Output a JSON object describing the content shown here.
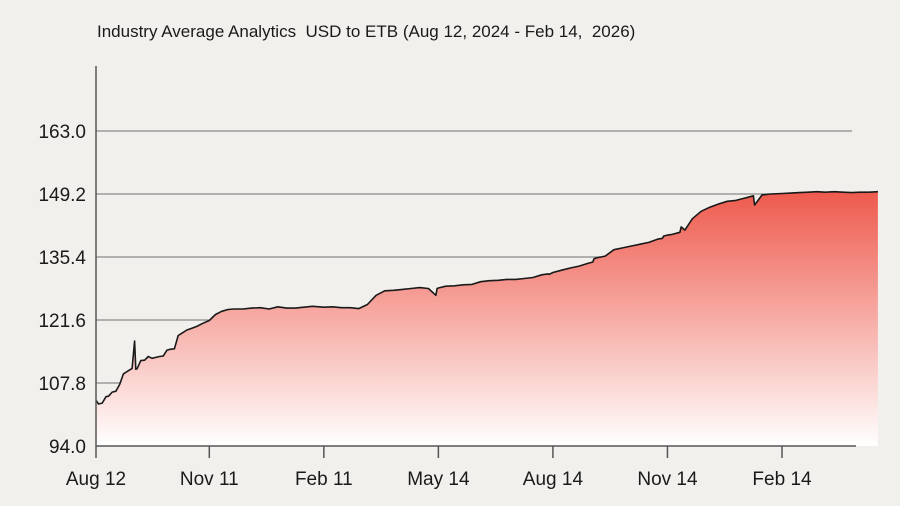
{
  "chart_data": {
    "type": "area",
    "title": "Industry Average Analytics  USD to ETB (Aug 12, 2024 - Feb 14,  2026)",
    "xlabel": "",
    "ylabel": "",
    "x_ticks": [
      "Aug 12",
      "Nov 11",
      "Feb 11",
      "May 14",
      "Aug 14",
      "Nov 14",
      "Feb 14"
    ],
    "y_ticks": [
      "94.0",
      "107.8",
      "121.6",
      "135.4",
      "149.2",
      "163.0"
    ],
    "ylim": [
      94.0,
      174.0
    ],
    "grid": "horizontal",
    "colors": {
      "fill_top": "#ee5a4d",
      "fill_bottom": "#ffffff",
      "line": "#1a1a1a",
      "grid": "#8a8a8a",
      "background": "#f1f0ec"
    },
    "series": [
      {
        "x": [
          "2024-08-12",
          "2024-08-14",
          "2024-08-17",
          "2024-08-20",
          "2024-08-22",
          "2024-08-25",
          "2024-08-28",
          "2024-08-31",
          "2024-09-03",
          "2024-09-07",
          "2024-09-10",
          "2024-09-12",
          "2024-09-13",
          "2024-09-14",
          "2024-09-17",
          "2024-09-20",
          "2024-09-23",
          "2024-09-26",
          "2024-09-29",
          "2024-10-02",
          "2024-10-05",
          "2024-10-08",
          "2024-10-11",
          "2024-10-14",
          "2024-10-17",
          "2024-10-20",
          "2024-10-24",
          "2024-10-28",
          "2024-11-01",
          "2024-11-06",
          "2024-11-11",
          "2024-11-16",
          "2024-11-21",
          "2024-11-26",
          "2024-12-01",
          "2024-12-08",
          "2024-12-15",
          "2024-12-22",
          "2024-12-29",
          "2025-01-05",
          "2025-01-12",
          "2025-01-19",
          "2025-01-26",
          "2025-02-02",
          "2025-02-11",
          "2025-02-18",
          "2025-02-25",
          "2025-03-04",
          "2025-03-11",
          "2025-03-18",
          "2025-03-25",
          "2025-04-01",
          "2025-04-08",
          "2025-04-15",
          "2025-04-22",
          "2025-04-29",
          "2025-05-06",
          "2025-05-12",
          "2025-05-13",
          "2025-05-14",
          "2025-05-20",
          "2025-05-27",
          "2025-06-03",
          "2025-06-10",
          "2025-06-17",
          "2025-06-24",
          "2025-07-01",
          "2025-07-08",
          "2025-07-15",
          "2025-07-22",
          "2025-07-29",
          "2025-08-05",
          "2025-08-10",
          "2025-08-11",
          "2025-08-14",
          "2025-08-21",
          "2025-08-28",
          "2025-09-04",
          "2025-09-11",
          "2025-09-15",
          "2025-09-16",
          "2025-09-18",
          "2025-09-25",
          "2025-10-02",
          "2025-10-09",
          "2025-10-16",
          "2025-10-23",
          "2025-10-30",
          "2025-11-06",
          "2025-11-10",
          "2025-11-11",
          "2025-11-14",
          "2025-11-17",
          "2025-11-24",
          "2025-11-25",
          "2025-11-28",
          "2025-12-04",
          "2025-12-11",
          "2025-12-18",
          "2025-12-25",
          "2026-01-01",
          "2026-01-08",
          "2026-01-15",
          "2026-01-22",
          "2026-01-23",
          "2026-01-29",
          "2026-02-05",
          "2026-02-14",
          "2026-02-21",
          "2026-02-28",
          "2026-03-07",
          "2026-03-14",
          "2026-03-21",
          "2026-03-28",
          "2026-04-04",
          "2026-04-11",
          "2026-04-18",
          "2026-04-25",
          "2026-05-02",
          "2026-05-09",
          "2026-05-13",
          "2026-05-15",
          "2026-05-18"
        ],
        "values": [
          104.0,
          103.2,
          103.4,
          104.8,
          104.9,
          105.8,
          106.0,
          107.5,
          109.8,
          110.5,
          111.0,
          117.0,
          110.8,
          110.9,
          112.7,
          112.8,
          113.6,
          113.2,
          113.4,
          113.6,
          113.7,
          115.0,
          115.2,
          115.3,
          118.2,
          118.7,
          119.4,
          119.8,
          120.2,
          120.9,
          121.5,
          122.8,
          123.5,
          123.9,
          124.0,
          124.0,
          124.2,
          124.3,
          124.0,
          124.5,
          124.2,
          124.2,
          124.4,
          124.6,
          124.4,
          124.5,
          124.3,
          124.3,
          124.1,
          125.0,
          127.0,
          128.0,
          128.1,
          128.3,
          128.5,
          128.7,
          128.5,
          127.0,
          128.5,
          128.6,
          129.0,
          129.1,
          129.3,
          129.4,
          130.0,
          130.2,
          130.3,
          130.5,
          130.5,
          130.7,
          130.9,
          131.5,
          131.7,
          131.6,
          132.0,
          132.5,
          133.0,
          133.4,
          134.0,
          134.3,
          135.0,
          135.2,
          135.6,
          137.0,
          137.4,
          137.8,
          138.2,
          138.6,
          139.3,
          139.5,
          140.0,
          140.2,
          140.3,
          140.8,
          142.0,
          141.3,
          143.8,
          145.4,
          146.3,
          147.0,
          147.6,
          147.8,
          148.3,
          148.8,
          146.8,
          149.0,
          149.2,
          149.3,
          149.4,
          149.5,
          149.6,
          149.7,
          149.6,
          149.7,
          149.6,
          149.5,
          149.6,
          149.6,
          149.7,
          149.8,
          149.9,
          149.7,
          149.8
        ]
      }
    ]
  }
}
